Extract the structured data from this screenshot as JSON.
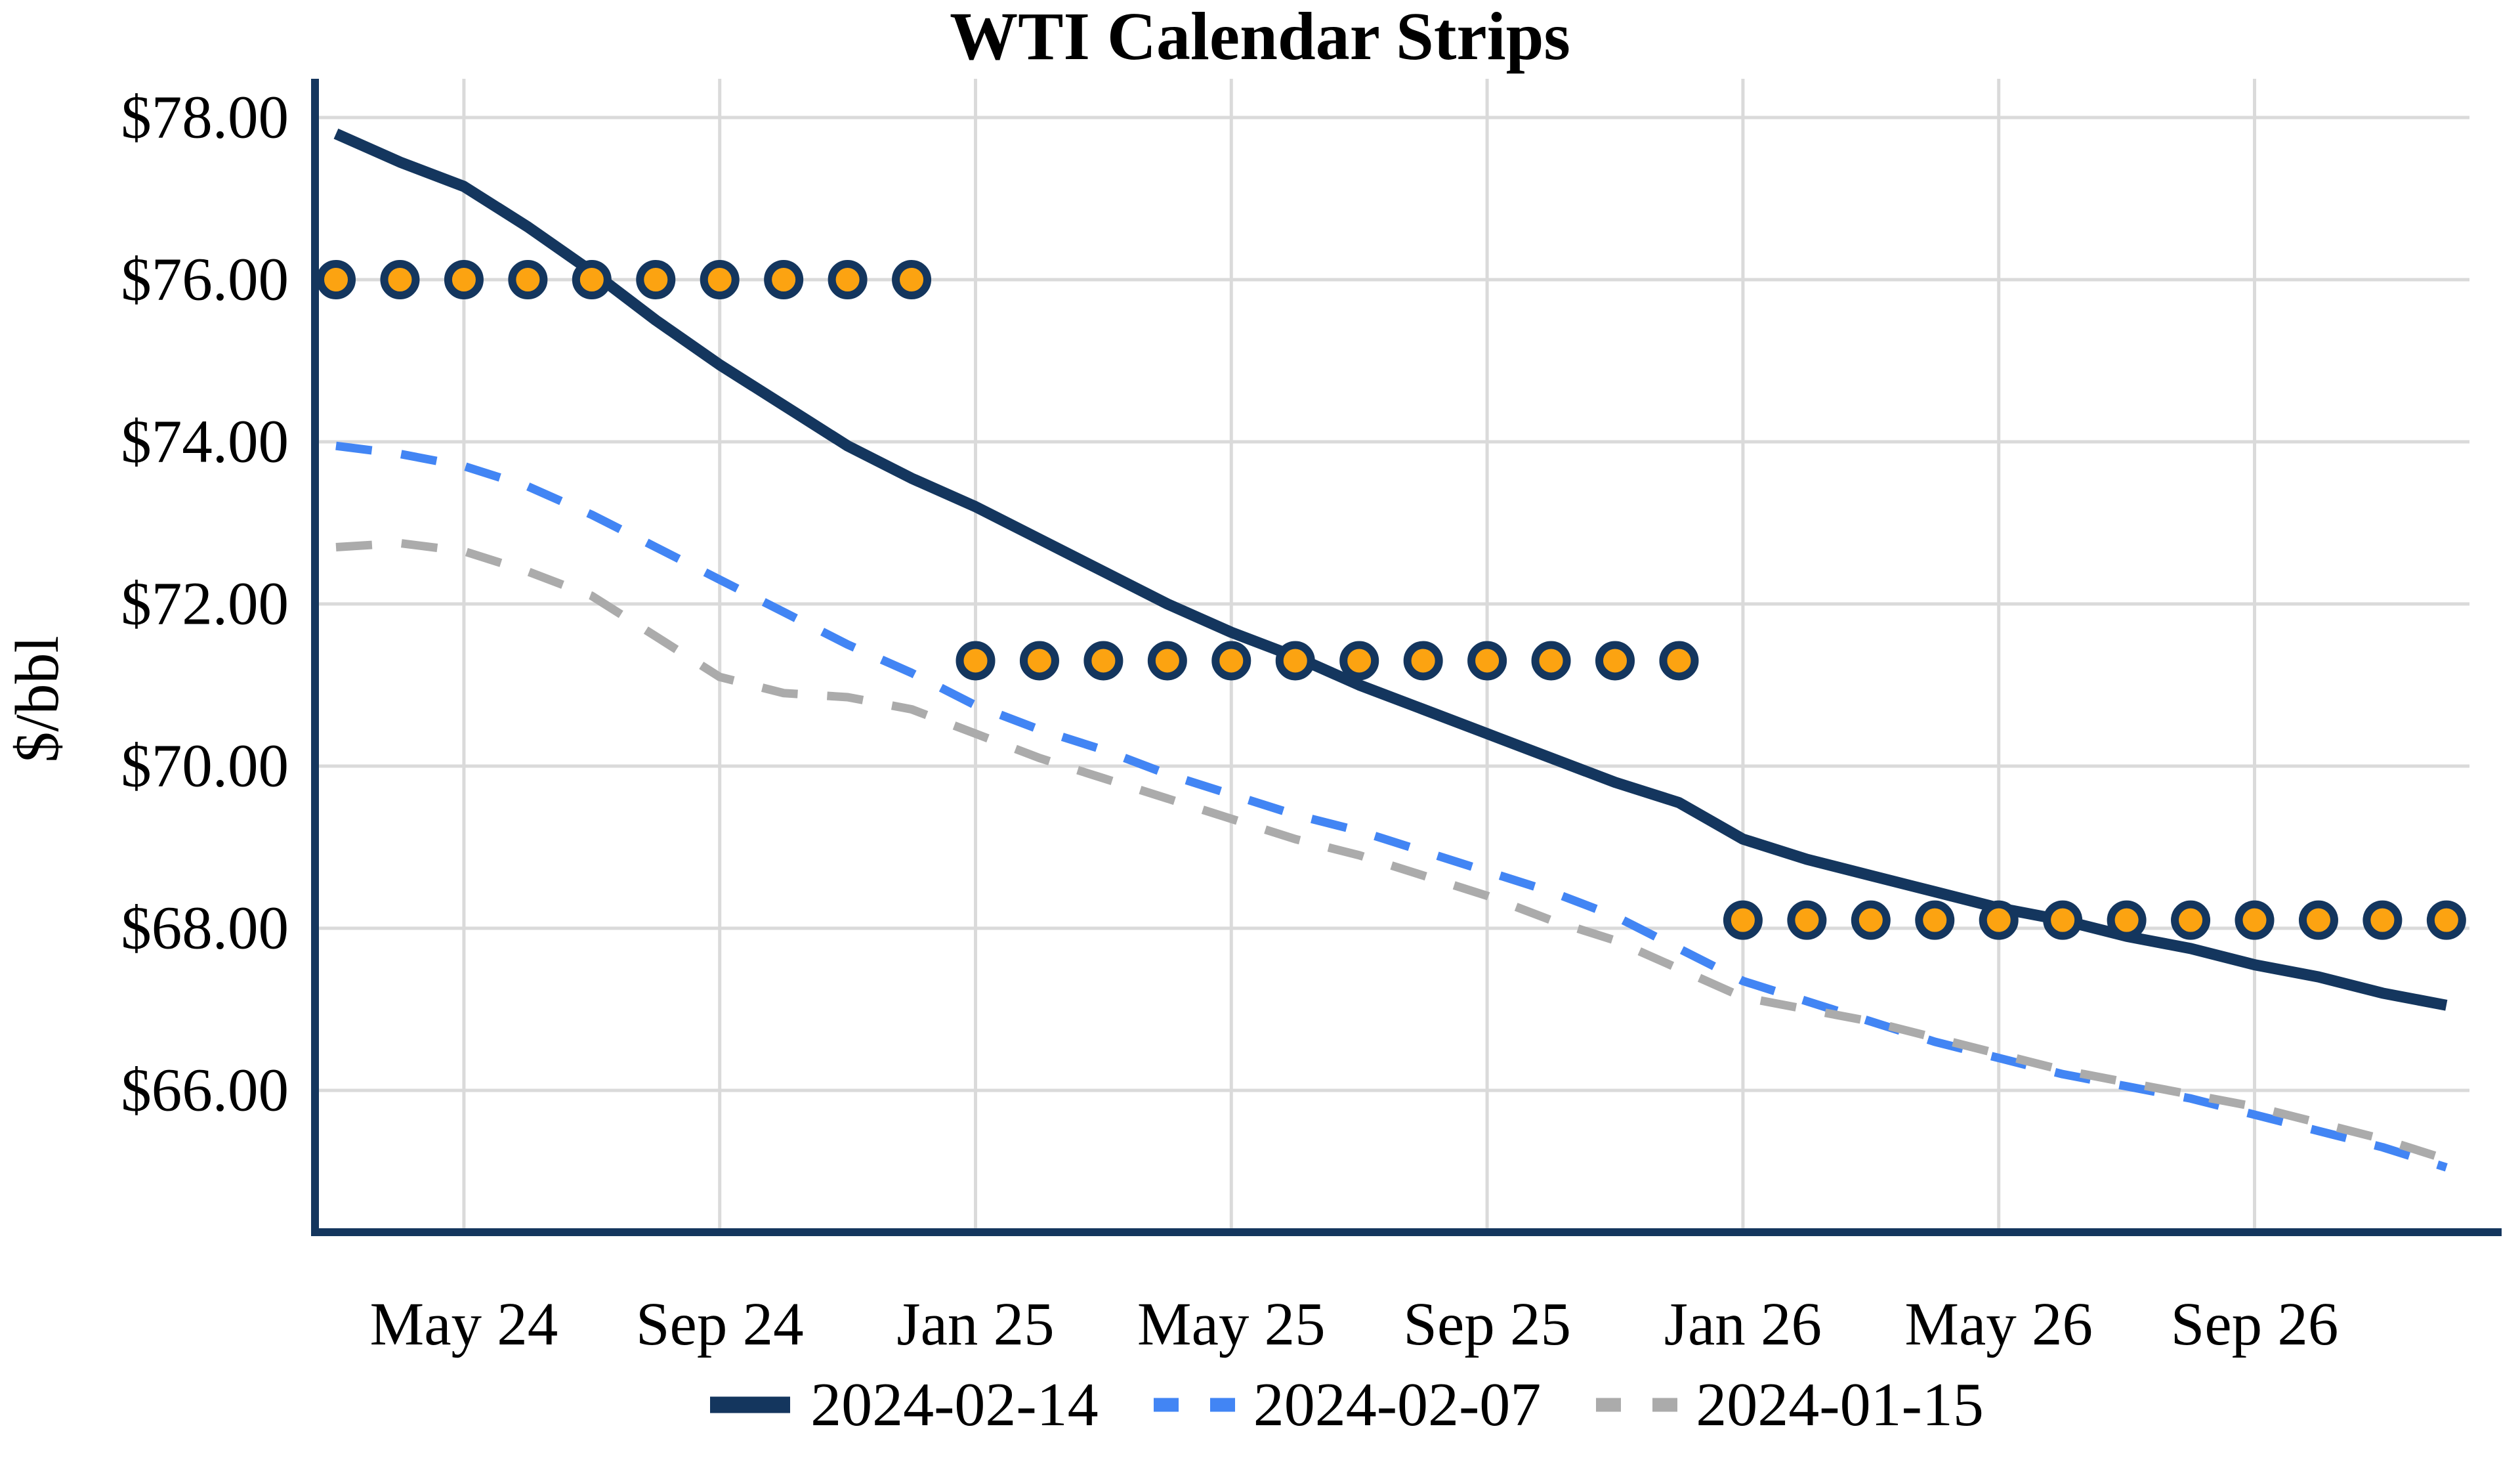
{
  "chart_data": {
    "type": "line",
    "title": "WTI Calendar Strips",
    "ylabel": "$/bbl",
    "xlabel": "",
    "grid": true,
    "legend_position": "bottom",
    "ylim": [
      64.3,
      78.5
    ],
    "x": [
      "Mar 24",
      "Apr 24",
      "May 24",
      "Jun 24",
      "Jul 24",
      "Aug 24",
      "Sep 24",
      "Oct 24",
      "Nov 24",
      "Dec 24",
      "Jan 25",
      "Feb 25",
      "Mar 25",
      "Apr 25",
      "May 25",
      "Jun 25",
      "Jul 25",
      "Aug 25",
      "Sep 25",
      "Oct 25",
      "Nov 25",
      "Dec 25",
      "Jan 26",
      "Feb 26",
      "Mar 26",
      "Apr 26",
      "May 26",
      "Jun 26",
      "Jul 26",
      "Aug 26",
      "Sep 26",
      "Oct 26",
      "Nov 26",
      "Dec 26"
    ],
    "x_ticks": [
      {
        "label": "May 24",
        "index": 2
      },
      {
        "label": "Sep 24",
        "index": 6
      },
      {
        "label": "Jan 25",
        "index": 10
      },
      {
        "label": "May 25",
        "index": 14
      },
      {
        "label": "Sep 25",
        "index": 18
      },
      {
        "label": "Jan 26",
        "index": 22
      },
      {
        "label": "May 26",
        "index": 26
      },
      {
        "label": "Sep 26",
        "index": 30
      }
    ],
    "y_ticks": [
      {
        "label": "$78.00",
        "value": 78
      },
      {
        "label": "$76.00",
        "value": 76
      },
      {
        "label": "$74.00",
        "value": 74
      },
      {
        "label": "$72.00",
        "value": 72
      },
      {
        "label": "$70.00",
        "value": 70
      },
      {
        "label": "$68.00",
        "value": 68
      },
      {
        "label": "$66.00",
        "value": 66
      }
    ],
    "series": [
      {
        "name": "2024-02-14",
        "style": "solid",
        "color": "#14365E",
        "values": [
          77.8,
          77.45,
          77.15,
          76.65,
          76.1,
          75.5,
          74.95,
          74.45,
          73.95,
          73.55,
          73.2,
          72.8,
          72.4,
          72.0,
          71.65,
          71.35,
          71.0,
          70.7,
          70.4,
          70.1,
          69.8,
          69.55,
          69.1,
          68.85,
          68.65,
          68.45,
          68.25,
          68.1,
          67.9,
          67.75,
          67.55,
          67.4,
          67.2,
          67.05
        ]
      },
      {
        "name": "2024-02-07",
        "style": "dashed",
        "color": "#4285F4",
        "values": [
          73.95,
          73.85,
          73.7,
          73.45,
          73.1,
          72.7,
          72.3,
          71.9,
          71.5,
          71.15,
          70.75,
          70.45,
          70.2,
          69.9,
          69.65,
          69.4,
          69.2,
          68.95,
          68.7,
          68.45,
          68.15,
          67.75,
          67.35,
          67.1,
          66.85,
          66.6,
          66.4,
          66.2,
          66.05,
          65.9,
          65.7,
          65.5,
          65.3,
          65.05
        ]
      },
      {
        "name": "2024-01-15",
        "style": "dashed",
        "color": "#ABABAB",
        "values": [
          72.7,
          72.75,
          72.65,
          72.4,
          72.1,
          71.6,
          71.1,
          70.9,
          70.85,
          70.7,
          70.4,
          70.1,
          69.85,
          69.6,
          69.35,
          69.1,
          68.9,
          68.65,
          68.4,
          68.1,
          67.85,
          67.5,
          67.15,
          67.0,
          66.85,
          66.65,
          66.45,
          66.25,
          66.1,
          65.95,
          65.8,
          65.6,
          65.4,
          65.15
        ]
      }
    ],
    "marker_strips": [
      {
        "value": 76.0,
        "start_index": 0,
        "count": 10
      },
      {
        "value": 71.3,
        "start_index": 10,
        "count": 12
      },
      {
        "value": 68.1,
        "start_index": 22,
        "count": 12
      }
    ],
    "colors": {
      "axis": "#14365E",
      "grid": "#DADADA",
      "marker_fill": "#FCA311",
      "marker_outline": "#14365E",
      "text": "#000000"
    }
  }
}
